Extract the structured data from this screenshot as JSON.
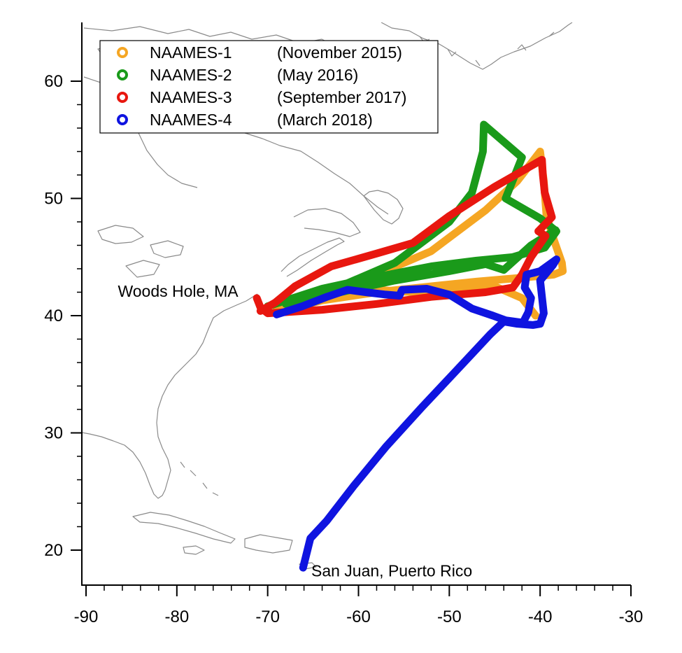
{
  "chart_data": {
    "type": "line",
    "title": "",
    "xlabel": "",
    "ylabel": "",
    "xlim": [
      -90.5,
      -30
    ],
    "ylim": [
      17,
      65
    ],
    "xticks": [
      -90,
      -80,
      -70,
      -60,
      -50,
      -40,
      -30
    ],
    "yticks": [
      20,
      30,
      40,
      50,
      60
    ],
    "xtick_labels": [
      "-90",
      "-80",
      "-70",
      "-60",
      "-50",
      "-40",
      "-30"
    ],
    "ytick_labels": [
      "20",
      "30",
      "40",
      "50",
      "60"
    ],
    "grid": false,
    "legend_position": "top-left",
    "series": [
      {
        "name": "NAAMES-1",
        "period": "(November 2015)",
        "color": "#f5a623",
        "points": [
          [
            -69,
            40.3
          ],
          [
            -64,
            41.3
          ],
          [
            -58,
            42.0
          ],
          [
            -52,
            42.5
          ],
          [
            -47,
            42.9
          ],
          [
            -42.5,
            43.2
          ],
          [
            -38.5,
            43.5
          ],
          [
            -37.5,
            43.8
          ],
          [
            -37.6,
            44.5
          ],
          [
            -38.5,
            46.5
          ],
          [
            -39.3,
            48.5
          ],
          [
            -39.6,
            51.5
          ],
          [
            -40.0,
            54.0
          ],
          [
            -42.5,
            51.5
          ],
          [
            -46,
            49.0
          ],
          [
            -52,
            45.5
          ],
          [
            -58,
            43.5
          ],
          [
            -64,
            41.8
          ],
          [
            -69,
            40.5
          ],
          [
            -66,
            41.0
          ],
          [
            -60,
            42.3
          ],
          [
            -54,
            42.0
          ],
          [
            -49,
            42.3
          ],
          [
            -45,
            42.5
          ],
          [
            -42,
            41.5
          ],
          [
            -40.5,
            40.0
          ]
        ]
      },
      {
        "name": "NAAMES-2",
        "period": "(May 2016)",
        "color": "#1a9a1a",
        "points": [
          [
            -70,
            40.8
          ],
          [
            -64,
            42.3
          ],
          [
            -58,
            43.3
          ],
          [
            -52,
            44.2
          ],
          [
            -47,
            44.7
          ],
          [
            -43,
            45.0
          ],
          [
            -39.5,
            45.8
          ],
          [
            -38.2,
            47.2
          ],
          [
            -40,
            48.3
          ],
          [
            -43.8,
            50.0
          ],
          [
            -42,
            53.5
          ],
          [
            -46.2,
            56.3
          ],
          [
            -46.3,
            54.0
          ],
          [
            -47.5,
            50.5
          ],
          [
            -50,
            48.0
          ],
          [
            -56,
            44.5
          ],
          [
            -62,
            42.5
          ],
          [
            -68,
            41.0
          ],
          [
            -62,
            42.0
          ],
          [
            -56,
            43.0
          ],
          [
            -50,
            43.8
          ],
          [
            -46,
            44.4
          ],
          [
            -44,
            43.9
          ],
          [
            -41,
            46.0
          ],
          [
            -38.3,
            47.3
          ]
        ]
      },
      {
        "name": "NAAMES-3",
        "period": "(September 2017)",
        "color": "#e8170f",
        "points": [
          [
            -71.2,
            41.5
          ],
          [
            -70.8,
            40.7
          ],
          [
            -70.0,
            40.2
          ],
          [
            -64.0,
            40.5
          ],
          [
            -58,
            41.0
          ],
          [
            -52,
            41.6
          ],
          [
            -46,
            42.0
          ],
          [
            -43.0,
            42.4
          ],
          [
            -42.0,
            43.5
          ],
          [
            -41,
            45.0
          ],
          [
            -39.4,
            46.8
          ],
          [
            -40.2,
            47.2
          ],
          [
            -38.7,
            48.4
          ],
          [
            -39.5,
            50.5
          ],
          [
            -39.7,
            52.0
          ],
          [
            -39.8,
            53.3
          ],
          [
            -45,
            51.0
          ],
          [
            -50,
            48.5
          ],
          [
            -54,
            46.2
          ],
          [
            -58,
            45.3
          ],
          [
            -63,
            44.2
          ],
          [
            -67,
            42.5
          ],
          [
            -69.2,
            41.1
          ],
          [
            -70.8,
            40.4
          ]
        ]
      },
      {
        "name": "NAAMES-4",
        "period": "(March 2018)",
        "color": "#0f14e0",
        "points": [
          [
            -66.1,
            18.5
          ],
          [
            -65.3,
            21.0
          ],
          [
            -63.5,
            22.5
          ],
          [
            -60.5,
            25.5
          ],
          [
            -57.0,
            28.8
          ],
          [
            -53.0,
            32.2
          ],
          [
            -49.0,
            35.5
          ],
          [
            -45.5,
            38.4
          ],
          [
            -44.0,
            39.5
          ],
          [
            -42.5,
            39.3
          ],
          [
            -40.8,
            39.2
          ],
          [
            -40.0,
            39.3
          ],
          [
            -39.6,
            40.2
          ],
          [
            -40.0,
            43.0
          ],
          [
            -38.6,
            44.3
          ],
          [
            -38.2,
            44.8
          ],
          [
            -40.0,
            43.8
          ],
          [
            -41.5,
            43.5
          ],
          [
            -41.7,
            42.4
          ],
          [
            -41.0,
            41.5
          ],
          [
            -41.3,
            40.3
          ],
          [
            -41.9,
            39.4
          ],
          [
            -43.8,
            39.6
          ],
          [
            -45.2,
            40.0
          ],
          [
            -47.5,
            40.6
          ],
          [
            -50.0,
            41.8
          ],
          [
            -52.5,
            42.3
          ],
          [
            -55.2,
            42.2
          ],
          [
            -55.5,
            41.7
          ],
          [
            -57.0,
            41.8
          ],
          [
            -59.2,
            42.0
          ],
          [
            -61.2,
            42.2
          ],
          [
            -63.5,
            41.6
          ],
          [
            -66.2,
            40.8
          ],
          [
            -69.0,
            40.1
          ]
        ]
      }
    ],
    "annotations": [
      {
        "text": "Woods Hole, MA",
        "lon": -86.5,
        "lat": 42.1
      },
      {
        "text": "San Juan, Puerto Rico",
        "lon": -65.2,
        "lat": 18.25
      }
    ]
  },
  "colors": {
    "axis": "#000000",
    "coastline": "#8a8a8a",
    "background": "#ffffff"
  }
}
